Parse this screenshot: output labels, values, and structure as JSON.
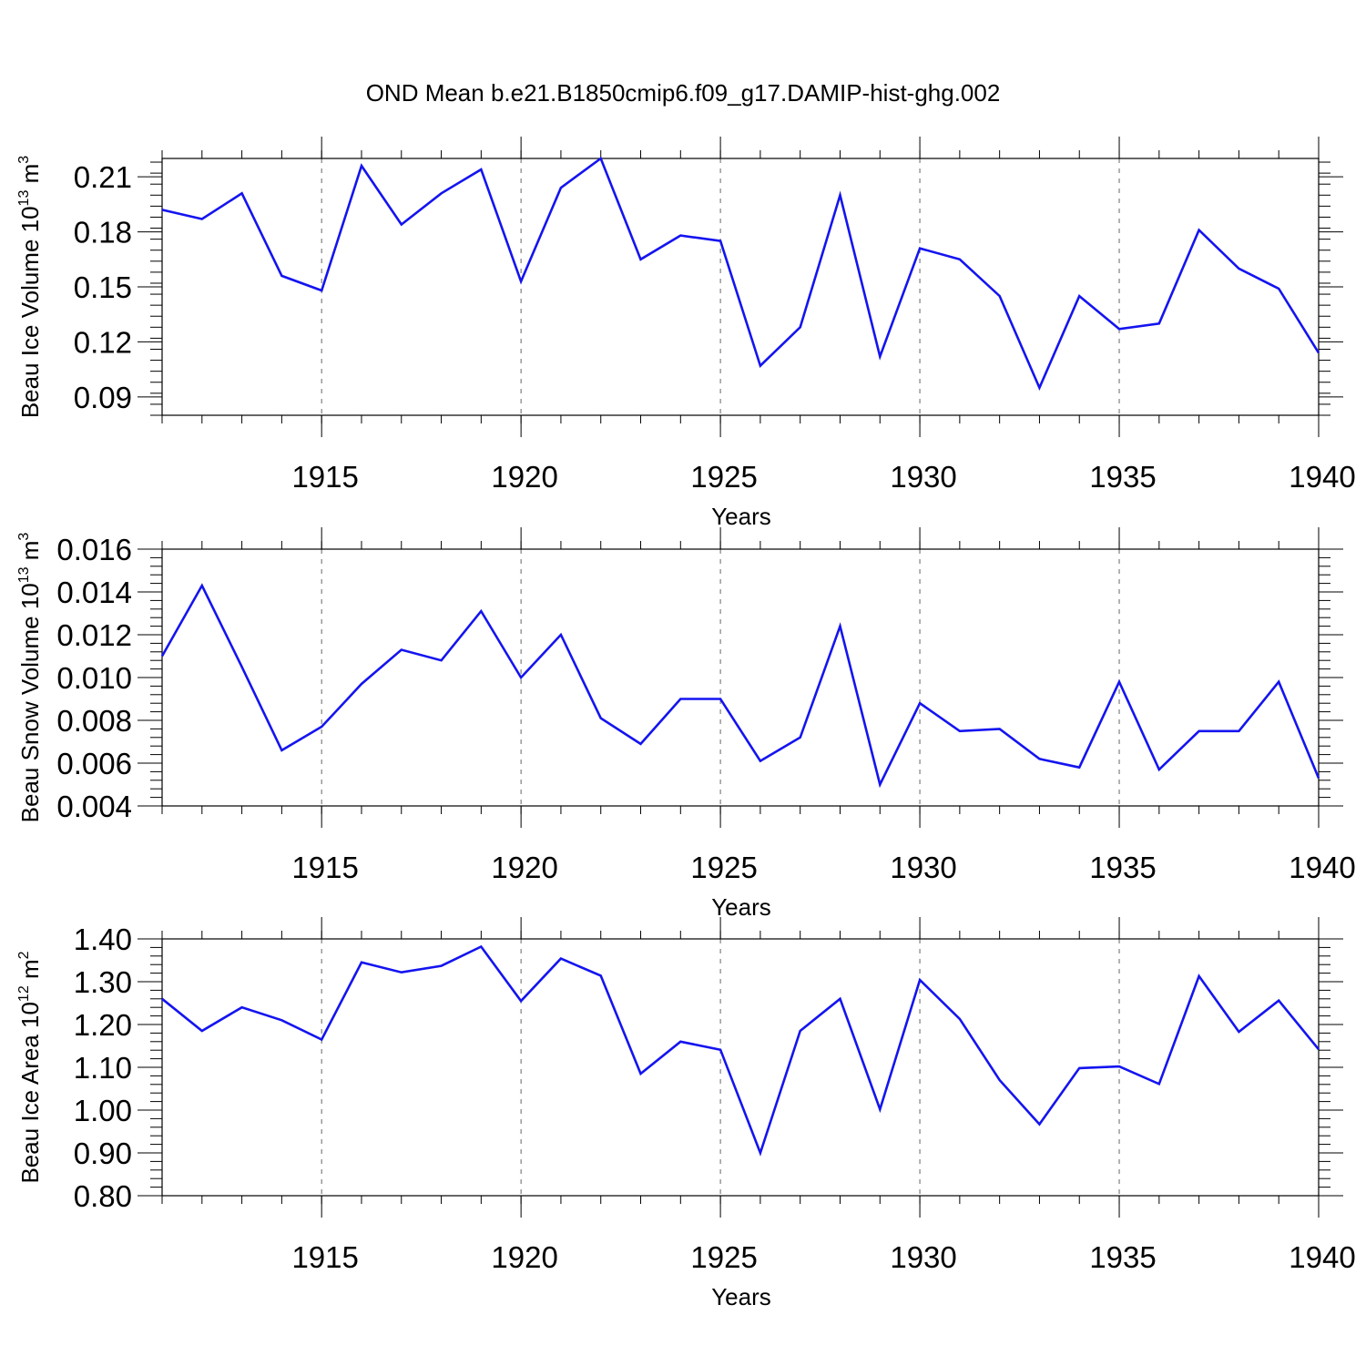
{
  "figure_title": "OND Mean b.e21.B1850cmip6.f09_g17.DAMIP-hist-ghg.002",
  "colors": {
    "line": "#1414f0",
    "axis": "#000000",
    "grid": "#666666"
  },
  "chart_data": [
    {
      "type": "line",
      "name": "ice-volume",
      "title": "OND Mean b.e21.B1850cmip6.f09_g17.DAMIP-hist-ghg.002",
      "xlabel": "Years",
      "ylabel": {
        "main": "Beau Ice Volume 10",
        "exp1": "13",
        "unit": " m",
        "exp2": "3"
      },
      "xlim": [
        1911,
        1940
      ],
      "ylim": [
        0.08,
        0.22
      ],
      "yticks": [
        0.09,
        0.12,
        0.15,
        0.18,
        0.21
      ],
      "ytick_labels": [
        "0.09",
        "0.12",
        "0.15",
        "0.18",
        "0.21"
      ],
      "xticks": [
        1915,
        1920,
        1925,
        1930,
        1935,
        1940
      ],
      "xtick_labels": [
        "1915",
        "1920",
        "1925",
        "1930",
        "1935",
        "1940"
      ],
      "x": [
        1911,
        1912,
        1913,
        1914,
        1915,
        1916,
        1917,
        1918,
        1919,
        1920,
        1921,
        1922,
        1923,
        1924,
        1925,
        1926,
        1927,
        1928,
        1929,
        1930,
        1931,
        1932,
        1933,
        1934,
        1935,
        1936,
        1937,
        1938,
        1939,
        1940
      ],
      "values": [
        0.192,
        0.187,
        0.201,
        0.156,
        0.148,
        0.216,
        0.184,
        0.201,
        0.214,
        0.153,
        0.204,
        0.22,
        0.165,
        0.178,
        0.175,
        0.107,
        0.128,
        0.2,
        0.112,
        0.171,
        0.165,
        0.145,
        0.095,
        0.145,
        0.127,
        0.13,
        0.181,
        0.16,
        0.149,
        0.114
      ]
    },
    {
      "type": "line",
      "name": "snow-volume",
      "xlabel": "Years",
      "ylabel": {
        "main": "Beau Snow Volume 10",
        "exp1": "13",
        "unit": " m",
        "exp2": "3"
      },
      "xlim": [
        1911,
        1940
      ],
      "ylim": [
        0.004,
        0.016
      ],
      "yticks": [
        0.004,
        0.006,
        0.008,
        0.01,
        0.012,
        0.014,
        0.016
      ],
      "ytick_labels": [
        "0.004",
        "0.006",
        "0.008",
        "0.010",
        "0.012",
        "0.014",
        "0.016"
      ],
      "xticks": [
        1915,
        1920,
        1925,
        1930,
        1935,
        1940
      ],
      "xtick_labels": [
        "1915",
        "1920",
        "1925",
        "1930",
        "1935",
        "1940"
      ],
      "x": [
        1911,
        1912,
        1913,
        1914,
        1915,
        1916,
        1917,
        1918,
        1919,
        1920,
        1921,
        1922,
        1923,
        1924,
        1925,
        1926,
        1927,
        1928,
        1929,
        1930,
        1931,
        1932,
        1933,
        1934,
        1935,
        1936,
        1937,
        1938,
        1939,
        1940
      ],
      "values": [
        0.011,
        0.0143,
        0.0105,
        0.0066,
        0.0077,
        0.0097,
        0.0113,
        0.0108,
        0.0131,
        0.01,
        0.012,
        0.0081,
        0.0069,
        0.009,
        0.009,
        0.0061,
        0.0072,
        0.0124,
        0.005,
        0.0088,
        0.0075,
        0.0076,
        0.0062,
        0.0058,
        0.0098,
        0.0057,
        0.0075,
        0.0075,
        0.0098,
        0.0053
      ]
    },
    {
      "type": "line",
      "name": "ice-area",
      "xlabel": "Years",
      "ylabel": {
        "main": "Beau Ice Area 10",
        "exp1": "12",
        "unit": " m",
        "exp2": "2"
      },
      "xlim": [
        1911,
        1940
      ],
      "ylim": [
        0.8,
        1.4
      ],
      "yticks": [
        0.8,
        0.9,
        1.0,
        1.1,
        1.2,
        1.3,
        1.4
      ],
      "ytick_labels": [
        "0.80",
        "0.90",
        "1.00",
        "1.10",
        "1.20",
        "1.30",
        "1.40"
      ],
      "xticks": [
        1915,
        1920,
        1925,
        1930,
        1935,
        1940
      ],
      "xtick_labels": [
        "1915",
        "1920",
        "1925",
        "1930",
        "1935",
        "1940"
      ],
      "x": [
        1911,
        1912,
        1913,
        1914,
        1915,
        1916,
        1917,
        1918,
        1919,
        1920,
        1921,
        1922,
        1923,
        1924,
        1925,
        1926,
        1927,
        1928,
        1929,
        1930,
        1931,
        1932,
        1933,
        1934,
        1935,
        1936,
        1937,
        1938,
        1939,
        1940
      ],
      "values": [
        1.26,
        1.185,
        1.24,
        1.21,
        1.165,
        1.345,
        1.322,
        1.337,
        1.382,
        1.255,
        1.354,
        1.314,
        1.085,
        1.16,
        1.141,
        0.9,
        1.185,
        1.26,
        1.002,
        1.304,
        1.213,
        1.07,
        0.967,
        1.098,
        1.102,
        1.061,
        1.313,
        1.183,
        1.256,
        1.142
      ]
    }
  ]
}
